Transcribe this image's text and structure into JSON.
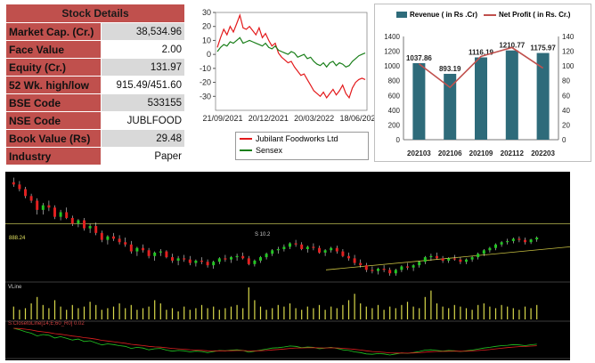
{
  "details": {
    "title": "Stock Details",
    "rows": [
      {
        "label": "Market Cap. (Cr.)",
        "value": "38,534.96"
      },
      {
        "label": "Face Value",
        "value": "2.00"
      },
      {
        "label": "Equity (Cr.)",
        "value": "131.97"
      },
      {
        "label": "52 Wk. high/low",
        "value": "915.49/451.60"
      },
      {
        "label": "BSE Code",
        "value": "533155"
      },
      {
        "label": "NSE Code",
        "value": "JUBLFOOD"
      },
      {
        "label": "Book Value (Rs)",
        "value": "29.48"
      },
      {
        "label": "Industry",
        "value": "Paper"
      }
    ]
  },
  "chart_data": [
    {
      "type": "line",
      "title": "",
      "xlabel": "",
      "ylabel": "",
      "ylim": [
        -40,
        30
      ],
      "yticks": [
        30,
        20,
        10,
        0,
        -10,
        -20,
        -30
      ],
      "xtick_labels": [
        "21/09/2021",
        "20/12/2021",
        "20/03/2022",
        "18/06/2022"
      ],
      "legend_position": "bottom",
      "grid": false,
      "series": [
        {
          "name": "Jubilant Foodworks Ltd",
          "color": "#e31a1c",
          "values": [
            5,
            12,
            18,
            14,
            20,
            16,
            22,
            28,
            19,
            18,
            20,
            17,
            14,
            19,
            12,
            15,
            10,
            6,
            8,
            1,
            -2,
            -4,
            -6,
            -5,
            -9,
            -12,
            -15,
            -14,
            -18,
            -22,
            -26,
            -28,
            -30,
            -27,
            -31,
            -28,
            -25,
            -29,
            -26,
            -22,
            -28,
            -31,
            -24,
            -20,
            -18,
            -17,
            -18
          ]
        },
        {
          "name": "Sensex",
          "color": "#1a7f1a",
          "values": [
            2,
            5,
            7,
            6,
            9,
            8,
            10,
            12,
            8,
            9,
            10,
            9,
            8,
            7,
            6,
            8,
            5,
            4,
            6,
            3,
            2,
            1,
            0,
            2,
            1,
            -2,
            -1,
            0,
            -3,
            -2,
            -5,
            -7,
            -8,
            -6,
            -9,
            -6,
            -5,
            -8,
            -6,
            -7,
            -9,
            -8,
            -5,
            -3,
            -1,
            0,
            1
          ]
        }
      ]
    },
    {
      "type": "bar",
      "title": "",
      "categories": [
        "202103",
        "202106",
        "202109",
        "202112",
        "202203"
      ],
      "left_ylim": [
        0,
        1400
      ],
      "left_yticks": [
        0,
        200,
        400,
        600,
        800,
        1000,
        1200,
        1400
      ],
      "right_ylim": [
        0,
        140
      ],
      "right_yticks": [
        0,
        20,
        40,
        60,
        80,
        100,
        120,
        140
      ],
      "legend_position": "top",
      "series": [
        {
          "name": "Revenue ( in Rs .Cr)",
          "type": "bar",
          "color": "#2e6b7a",
          "axis": "left",
          "values": [
            1037.86,
            893.19,
            1116.19,
            1210.77,
            1175.97
          ],
          "labels": [
            "1037.86",
            "893.19",
            "1116.19",
            "1210.77",
            "1175.97"
          ]
        },
        {
          "name": "Net Profit ( in Rs. Cr.)",
          "type": "line",
          "color": "#c0504d",
          "axis": "right",
          "values": [
            103,
            71,
            113,
            125,
            97
          ]
        }
      ]
    }
  ],
  "candles": {
    "label_price": "S 10.2",
    "label_level": "888.24",
    "label_volume": "VLine",
    "label_indicator": "S:ClosetoLine[14;E;60_R0]  0.02",
    "colors": {
      "up": "#23c623",
      "down": "#e22020",
      "level": "#e0e060",
      "trend": "#c8c040"
    },
    "ohlc": [
      [
        880,
        900,
        860,
        870
      ],
      [
        870,
        885,
        840,
        850
      ],
      [
        850,
        860,
        810,
        820
      ],
      [
        820,
        830,
        790,
        800
      ],
      [
        800,
        810,
        740,
        760
      ],
      [
        760,
        790,
        740,
        780
      ],
      [
        780,
        800,
        755,
        770
      ],
      [
        770,
        780,
        720,
        730
      ],
      [
        730,
        760,
        715,
        750
      ],
      [
        750,
        770,
        720,
        725
      ],
      [
        725,
        735,
        690,
        700
      ],
      [
        700,
        720,
        685,
        715
      ],
      [
        715,
        725,
        670,
        680
      ],
      [
        680,
        700,
        660,
        690
      ],
      [
        690,
        705,
        650,
        660
      ],
      [
        660,
        670,
        620,
        630
      ],
      [
        630,
        650,
        610,
        645
      ],
      [
        645,
        660,
        625,
        635
      ],
      [
        635,
        650,
        610,
        620
      ],
      [
        620,
        640,
        600,
        610
      ],
      [
        610,
        625,
        570,
        580
      ],
      [
        580,
        600,
        560,
        595
      ],
      [
        595,
        610,
        575,
        585
      ],
      [
        585,
        595,
        550,
        560
      ],
      [
        560,
        580,
        540,
        575
      ],
      [
        575,
        590,
        560,
        580
      ],
      [
        580,
        585,
        550,
        555
      ],
      [
        555,
        570,
        530,
        540
      ],
      [
        540,
        560,
        520,
        550
      ],
      [
        550,
        565,
        535,
        545
      ],
      [
        545,
        560,
        520,
        530
      ],
      [
        530,
        545,
        515,
        540
      ],
      [
        540,
        555,
        525,
        535
      ],
      [
        535,
        545,
        510,
        520
      ],
      [
        520,
        540,
        505,
        535
      ],
      [
        535,
        555,
        525,
        550
      ],
      [
        550,
        565,
        535,
        545
      ],
      [
        545,
        560,
        530,
        555
      ],
      [
        555,
        570,
        540,
        560
      ],
      [
        560,
        575,
        545,
        550
      ],
      [
        550,
        560,
        520,
        525
      ],
      [
        525,
        545,
        515,
        540
      ],
      [
        540,
        560,
        530,
        555
      ],
      [
        555,
        575,
        545,
        570
      ],
      [
        570,
        590,
        560,
        585
      ],
      [
        585,
        600,
        570,
        590
      ],
      [
        590,
        610,
        580,
        600
      ],
      [
        600,
        620,
        590,
        615
      ],
      [
        615,
        630,
        600,
        610
      ],
      [
        610,
        620,
        585,
        590
      ],
      [
        590,
        605,
        575,
        600
      ],
      [
        600,
        615,
        585,
        595
      ],
      [
        595,
        605,
        570,
        575
      ],
      [
        575,
        590,
        560,
        585
      ],
      [
        585,
        600,
        575,
        595
      ],
      [
        595,
        605,
        570,
        580
      ],
      [
        580,
        590,
        555,
        560
      ],
      [
        560,
        575,
        540,
        550
      ],
      [
        550,
        565,
        520,
        530
      ],
      [
        530,
        545,
        510,
        520
      ],
      [
        520,
        530,
        490,
        500
      ],
      [
        500,
        515,
        485,
        495
      ],
      [
        495,
        510,
        480,
        505
      ],
      [
        505,
        520,
        490,
        500
      ],
      [
        500,
        510,
        475,
        485
      ],
      [
        485,
        505,
        475,
        500
      ],
      [
        500,
        520,
        490,
        515
      ],
      [
        515,
        530,
        500,
        510
      ],
      [
        510,
        525,
        495,
        520
      ],
      [
        520,
        540,
        510,
        535
      ],
      [
        535,
        560,
        525,
        555
      ],
      [
        555,
        570,
        540,
        560
      ],
      [
        560,
        575,
        545,
        550
      ],
      [
        550,
        560,
        530,
        540
      ],
      [
        540,
        555,
        530,
        550
      ],
      [
        550,
        565,
        540,
        545
      ],
      [
        545,
        555,
        525,
        535
      ],
      [
        535,
        550,
        525,
        545
      ],
      [
        545,
        560,
        535,
        555
      ],
      [
        555,
        575,
        545,
        570
      ],
      [
        570,
        590,
        560,
        585
      ],
      [
        585,
        600,
        575,
        595
      ],
      [
        595,
        615,
        585,
        610
      ],
      [
        610,
        625,
        600,
        620
      ],
      [
        620,
        635,
        610,
        625
      ],
      [
        625,
        640,
        615,
        635
      ],
      [
        635,
        645,
        620,
        630
      ],
      [
        630,
        640,
        610,
        620
      ],
      [
        620,
        635,
        612,
        632
      ],
      [
        632,
        645,
        622,
        640
      ]
    ],
    "volume": [
      8,
      6,
      7,
      10,
      14,
      9,
      7,
      12,
      8,
      6,
      9,
      7,
      8,
      11,
      9,
      6,
      7,
      8,
      10,
      7,
      9,
      6,
      7,
      8,
      12,
      10,
      6,
      7,
      5,
      8,
      6,
      7,
      9,
      7,
      8,
      6,
      7,
      8,
      9,
      7,
      20,
      12,
      8,
      6,
      7,
      9,
      8,
      10,
      7,
      6,
      8,
      7,
      9,
      6,
      8,
      7,
      9,
      12,
      16,
      10,
      8,
      7,
      9,
      6,
      8,
      7,
      9,
      11,
      8,
      7,
      14,
      18,
      10,
      8,
      7,
      9,
      8,
      7,
      6,
      9,
      10,
      8,
      7,
      9,
      8,
      7,
      6,
      8,
      7,
      9
    ]
  }
}
